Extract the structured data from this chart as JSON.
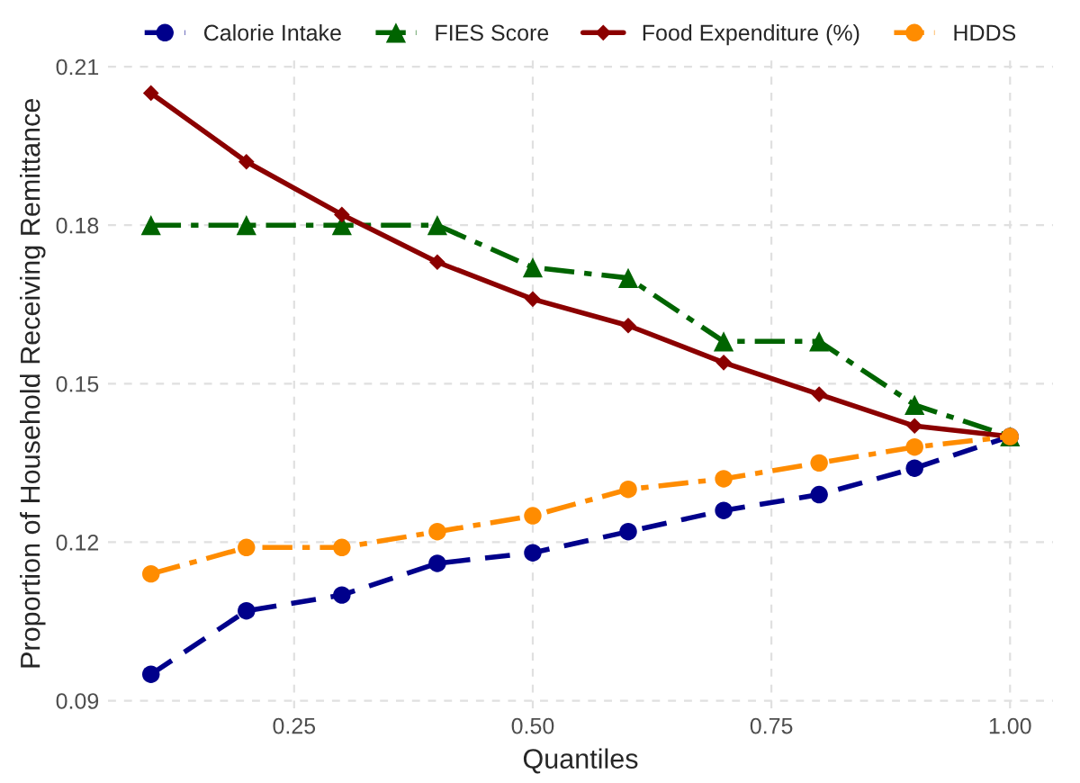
{
  "chart_data": {
    "type": "line",
    "xlabel": "Quantiles",
    "ylabel": "Proportion of Household Receiving Remittance",
    "x": [
      0.1,
      0.2,
      0.3,
      0.4,
      0.5,
      0.6,
      0.7,
      0.8,
      0.9,
      1.0
    ],
    "series": [
      {
        "name": "Calorie Intake",
        "color": "#00008b",
        "marker": "circle",
        "line_style": "dashed",
        "values": [
          0.095,
          0.107,
          0.11,
          0.116,
          0.118,
          0.122,
          0.126,
          0.129,
          0.134,
          0.14
        ]
      },
      {
        "name": "FIES Score",
        "color": "#006400",
        "marker": "triangle",
        "line_style": "dashdot",
        "values": [
          0.18,
          0.18,
          0.18,
          0.18,
          0.172,
          0.17,
          0.158,
          0.158,
          0.146,
          0.14
        ]
      },
      {
        "name": "Food Expenditure (%)",
        "color": "#8b0000",
        "marker": "diamond",
        "line_style": "solid",
        "values": [
          0.205,
          0.192,
          0.182,
          0.173,
          0.166,
          0.161,
          0.154,
          0.148,
          0.142,
          0.14
        ]
      },
      {
        "name": "HDDS",
        "color": "#ff8c00",
        "marker": "circle",
        "line_style": "dashdot",
        "values": [
          0.114,
          0.119,
          0.119,
          0.122,
          0.125,
          0.13,
          0.132,
          0.135,
          0.138,
          0.14
        ]
      }
    ],
    "xlim": [
      0.055,
      1.045
    ],
    "ylim": [
      0.0885,
      0.2115
    ],
    "xticks": [
      {
        "value": 0.25,
        "label": "0.25"
      },
      {
        "value": 0.5,
        "label": "0.50"
      },
      {
        "value": 0.75,
        "label": "0.75"
      },
      {
        "value": 1.0,
        "label": "1.00"
      }
    ],
    "yticks": [
      {
        "value": 0.09,
        "label": "0.09"
      },
      {
        "value": 0.12,
        "label": "0.12"
      },
      {
        "value": 0.15,
        "label": "0.15"
      },
      {
        "value": 0.18,
        "label": "0.18"
      },
      {
        "value": 0.21,
        "label": "0.21"
      }
    ],
    "grid": true,
    "legend": "top"
  }
}
